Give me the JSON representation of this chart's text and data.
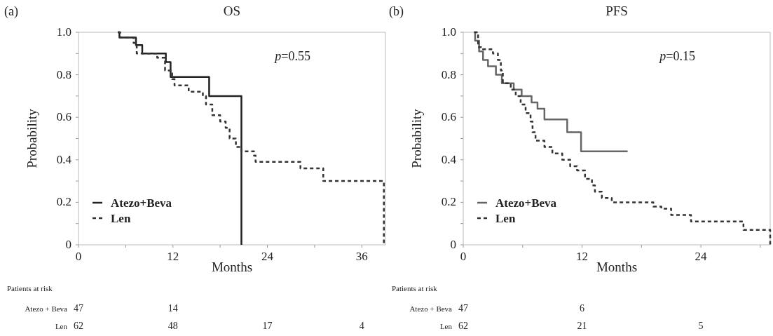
{
  "chart_data": [
    {
      "type": "step",
      "title": "OS",
      "xlabel": "Months",
      "ylabel": "Probability",
      "xlim": [
        0,
        39
      ],
      "ylim": [
        0,
        1
      ],
      "xticks": [
        0,
        {
          "value": 6,
          "label": null
        },
        12,
        {
          "value": 18,
          "label": null
        },
        24,
        {
          "value": 30,
          "label": null
        },
        36
      ],
      "yticks": [
        {
          "value": 0,
          "label": "0"
        },
        {
          "value": 0.1,
          "label": null
        },
        0.2,
        {
          "value": 0.3,
          "label": null
        },
        0.4,
        {
          "value": 0.5,
          "label": null
        },
        0.6,
        {
          "value": 0.7,
          "label": null
        },
        0.8,
        {
          "value": 0.9,
          "label": null
        },
        {
          "value": 1,
          "label": "1.0"
        }
      ],
      "grid": false,
      "legend": "bottom left",
      "series": [
        {
          "name": "Atezo+Beva",
          "color": "#222222",
          "line_style": "solid",
          "x": [
            5.0,
            5.2,
            7.3,
            8.1,
            11.1,
            11.7,
            16.6,
            20.7
          ],
          "values": [
            1.0,
            0.975,
            0.94,
            0.9,
            0.86,
            0.79,
            0.7,
            0
          ]
        },
        {
          "name": "Len",
          "color": "#333333",
          "line_style": "dashed",
          "x": [
            5.0,
            5.3,
            7.0,
            7.4,
            10.0,
            11.0,
            11.9,
            12.2,
            14.0,
            15.8,
            16.2,
            17.0,
            18.0,
            18.7,
            19.2,
            20.0,
            20.7,
            22.3,
            22.5,
            28.2,
            31.1,
            38.8
          ],
          "values": [
            1.0,
            0.975,
            0.95,
            0.9,
            0.88,
            0.82,
            0.78,
            0.75,
            0.72,
            0.7,
            0.66,
            0.61,
            0.58,
            0.55,
            0.5,
            0.46,
            0.44,
            0.42,
            0.39,
            0.36,
            0.3,
            0
          ]
        }
      ],
      "annotations": [
        "(a)",
        "p=0.55",
        "Patients at risk",
        [
          "Atezo + Beva",
          "47",
          "14"
        ],
        [
          "Len",
          "62",
          "48",
          "17",
          "4"
        ]
      ]
    },
    {
      "type": "step",
      "title": "PFS",
      "xlabel": "Months",
      "ylabel": "Probability",
      "xlim": [
        0,
        31
      ],
      "ylim": [
        0,
        1
      ],
      "xticks": [
        0,
        {
          "value": 6,
          "label": null
        },
        12,
        {
          "value": 18,
          "label": null
        },
        24,
        {
          "value": 30,
          "label": null
        }
      ],
      "yticks": [
        {
          "value": 0,
          "label": "0"
        },
        {
          "value": 0.1,
          "label": null
        },
        0.2,
        {
          "value": 0.3,
          "label": null
        },
        0.4,
        {
          "value": 0.5,
          "label": null
        },
        0.6,
        {
          "value": 0.7,
          "label": null
        },
        0.8,
        {
          "value": 0.9,
          "label": null
        },
        {
          "value": 1,
          "label": "1.0"
        }
      ],
      "grid": false,
      "legend": "bottom left",
      "series": [
        {
          "name": "Atezo+Beva",
          "color": "#666666",
          "line_style": "solid",
          "x": [
            1.1,
            1.2,
            1.6,
            2.0,
            2.5,
            3.3,
            3.9,
            5.1,
            5.9,
            6.9,
            7.5,
            8.2,
            10.5,
            11.9,
            16.6
          ],
          "values": [
            1.0,
            0.96,
            0.91,
            0.87,
            0.84,
            0.8,
            0.76,
            0.73,
            0.7,
            0.67,
            0.64,
            0.59,
            0.53,
            0.44,
            0.44
          ]
        },
        {
          "name": "Len",
          "color": "#333333",
          "line_style": "dashed",
          "x": [
            1.1,
            1.5,
            2.0,
            3.0,
            3.5,
            3.8,
            4.0,
            4.8,
            5.3,
            5.8,
            6.3,
            6.8,
            7.0,
            7.3,
            8.2,
            9.0,
            10.0,
            10.8,
            11.5,
            12.3,
            13.0,
            13.3,
            14.0,
            15.0,
            19.2,
            20.0,
            21.0,
            23.0,
            28.3,
            29.5,
            31.0
          ],
          "values": [
            1.0,
            0.93,
            0.92,
            0.9,
            0.87,
            0.82,
            0.76,
            0.73,
            0.7,
            0.66,
            0.62,
            0.58,
            0.53,
            0.49,
            0.46,
            0.43,
            0.4,
            0.37,
            0.35,
            0.31,
            0.28,
            0.25,
            0.22,
            0.2,
            0.18,
            0.17,
            0.14,
            0.11,
            0.07,
            0.07,
            0
          ]
        }
      ],
      "annotations": [
        "(b)",
        "p=0.15",
        "Patients at risk",
        [
          "Atezo + Beva",
          "47",
          "6"
        ],
        [
          "Len",
          "62",
          "21",
          "5"
        ]
      ]
    }
  ]
}
